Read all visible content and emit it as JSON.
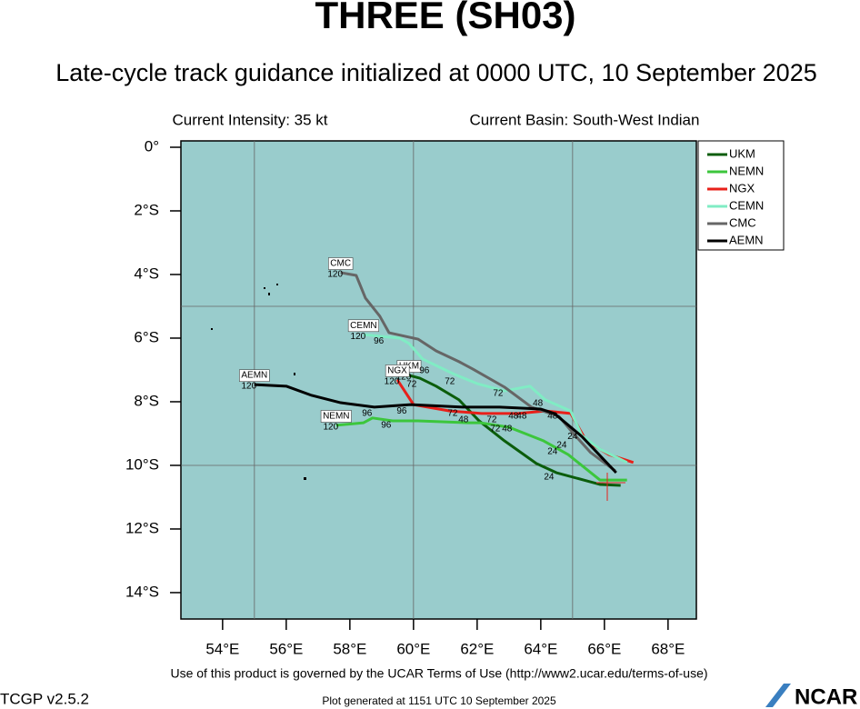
{
  "chart_data": {
    "type": "line",
    "title": "THREE (SH03)",
    "subtitle": "Late-cycle track guidance initialized at 0000 UTC, 10 September 2025",
    "intensity_note": "Current Intensity: 35 kt",
    "basin_note": "Current Basin: South-West Indian",
    "footer_terms": "Use of this product is governed by the UCAR Terms of Use (http://www2.ucar.edu/terms-of-use)",
    "version": "TCGP v2.5.2",
    "generated": "Plot generated at 1151 UTC   10 September 2025",
    "logo": "NCAR",
    "xlim": [
      52.69,
      68.89
    ],
    "ylim": [
      -14.83,
      0.2
    ],
    "xticks": [
      {
        "value": 54,
        "label": "54°E"
      },
      {
        "value": 56,
        "label": "56°E"
      },
      {
        "value": 58,
        "label": "58°E"
      },
      {
        "value": 60,
        "label": "60°E"
      },
      {
        "value": 62,
        "label": "62°E"
      },
      {
        "value": 64,
        "label": "64°E"
      },
      {
        "value": 66,
        "label": "66°E"
      },
      {
        "value": 68,
        "label": "68°E"
      }
    ],
    "yticks": [
      {
        "value": 0,
        "label": "0°"
      },
      {
        "value": -2,
        "label": "2°S"
      },
      {
        "value": -4,
        "label": "4°S"
      },
      {
        "value": -6,
        "label": "6°S"
      },
      {
        "value": -8,
        "label": "8°S"
      },
      {
        "value": -10,
        "label": "10°S"
      },
      {
        "value": -12,
        "label": "12°S"
      },
      {
        "value": -14,
        "label": "14°S"
      }
    ],
    "grid_x": [
      55,
      60,
      65
    ],
    "grid_y": [
      -5,
      -10
    ],
    "end_label": "120",
    "series": [
      {
        "name": "UKM",
        "color": "#0b5d0b",
        "x": [
          66.51,
          65.86,
          64.49,
          63.86,
          62.86,
          62.06,
          61.43,
          60.71,
          60.2,
          59.86
        ],
        "values": [
          -10.63,
          -10.6,
          -10.23,
          -9.94,
          -9.23,
          -8.6,
          -7.94,
          -7.51,
          -7.26,
          -7.17
        ]
      },
      {
        "name": "NEMN",
        "color": "#3cc63c",
        "x": [
          66.71,
          65.86,
          64.86,
          64.09,
          63.0,
          62.09,
          61.71,
          60.14,
          59.34,
          58.71,
          58.43,
          57.57
        ],
        "values": [
          -10.46,
          -10.46,
          -9.66,
          -9.23,
          -8.8,
          -8.66,
          -8.66,
          -8.6,
          -8.6,
          -8.51,
          -8.66,
          -8.74
        ]
      },
      {
        "name": "NGX",
        "color": "#e8201a",
        "x": [
          66.91,
          66.14,
          65.43,
          64.94,
          64.14,
          63.29,
          62.14,
          61.14,
          60.0,
          59.57,
          59.49
        ],
        "values": [
          -9.91,
          -9.66,
          -9.23,
          -8.37,
          -8.29,
          -8.37,
          -8.37,
          -8.29,
          -8.09,
          -7.43,
          -7.31
        ]
      },
      {
        "name": "CEMN",
        "color": "#80ecc4",
        "x": [
          66.71,
          65.86,
          65.29,
          64.94,
          64.14,
          63.66,
          62.86,
          62.0,
          61.29,
          60.29,
          59.86,
          59.57,
          58.43
        ],
        "values": [
          -9.91,
          -9.49,
          -9.06,
          -8.29,
          -7.94,
          -7.51,
          -7.66,
          -7.43,
          -7.14,
          -6.66,
          -6.17,
          -6.0,
          -5.89
        ]
      },
      {
        "name": "CMC",
        "color": "#666666",
        "x": [
          66.34,
          65.57,
          65.0,
          64.57,
          63.71,
          62.86,
          61.86,
          61.43,
          60.71,
          60.14,
          59.23,
          58.94,
          58.49,
          58.2,
          57.71
        ],
        "values": [
          -10.17,
          -9.6,
          -8.97,
          -8.46,
          -8.17,
          -7.54,
          -6.97,
          -6.74,
          -6.4,
          -6.03,
          -5.83,
          -5.31,
          -4.74,
          -4.03,
          -3.94
        ]
      },
      {
        "name": "AEMN",
        "color": "#000000",
        "x": [
          66.37,
          65.29,
          64.43,
          64.0,
          62.71,
          61.57,
          59.91,
          58.77,
          57.71,
          56.8,
          56.0,
          55.0
        ],
        "values": [
          -10.23,
          -9.09,
          -8.37,
          -8.23,
          -8.17,
          -8.17,
          -8.09,
          -8.17,
          -8.03,
          -7.8,
          -7.51,
          -7.46
        ]
      }
    ],
    "annotations": [
      {
        "text": "24",
        "x": 64.26,
        "y": -10.37
      },
      {
        "text": "48",
        "x": 61.57,
        "y": -8.57
      },
      {
        "text": "72",
        "x": 61.14,
        "y": -7.37
      },
      {
        "text": "96",
        "x": 60.34,
        "y": -7.03
      },
      {
        "text": "72",
        "x": 59.94,
        "y": -7.46
      },
      {
        "text": "96",
        "x": 58.91,
        "y": -6.09
      },
      {
        "text": "72",
        "x": 61.23,
        "y": -8.37
      },
      {
        "text": "96",
        "x": 59.63,
        "y": -8.29
      },
      {
        "text": "96",
        "x": 58.54,
        "y": -8.37
      },
      {
        "text": "96",
        "x": 59.14,
        "y": -8.74
      },
      {
        "text": "48",
        "x": 62.94,
        "y": -8.86
      },
      {
        "text": "72",
        "x": 62.57,
        "y": -8.86
      },
      {
        "text": "72",
        "x": 62.46,
        "y": -8.57
      },
      {
        "text": "48",
        "x": 63.14,
        "y": -8.46
      },
      {
        "text": "48",
        "x": 63.4,
        "y": -8.46
      },
      {
        "text": "48",
        "x": 63.91,
        "y": -8.06
      },
      {
        "text": "72",
        "x": 62.66,
        "y": -7.74
      },
      {
        "text": "24",
        "x": 64.37,
        "y": -9.57
      },
      {
        "text": "24",
        "x": 64.66,
        "y": -9.37
      },
      {
        "text": "24",
        "x": 65.0,
        "y": -9.09
      },
      {
        "text": "48",
        "x": 64.37,
        "y": -8.46
      }
    ]
  }
}
